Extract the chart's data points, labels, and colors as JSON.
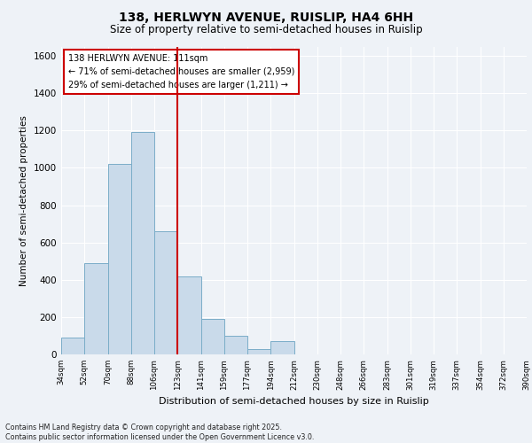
{
  "title1": "138, HERLWYN AVENUE, RUISLIP, HA4 6HH",
  "title2": "Size of property relative to semi-detached houses in Ruislip",
  "xlabel": "Distribution of semi-detached houses by size in Ruislip",
  "ylabel": "Number of semi-detached properties",
  "categories": [
    "34sqm",
    "52sqm",
    "70sqm",
    "88sqm",
    "106sqm",
    "123sqm",
    "141sqm",
    "159sqm",
    "177sqm",
    "194sqm",
    "212sqm",
    "230sqm",
    "248sqm",
    "266sqm",
    "283sqm",
    "301sqm",
    "319sqm",
    "337sqm",
    "354sqm",
    "372sqm",
    "390sqm"
  ],
  "bar_heights": [
    90,
    490,
    1020,
    1190,
    660,
    420,
    190,
    100,
    30,
    70,
    0,
    0,
    0,
    0,
    0,
    0,
    0,
    0,
    0,
    0
  ],
  "bar_color": "#c9daea",
  "bar_edge_color": "#7aadc8",
  "annotation_box_color": "#cc0000",
  "vline_color": "#cc0000",
  "annotation_text": "138 HERLWYN AVENUE: 111sqm\n← 71% of semi-detached houses are smaller (2,959)\n29% of semi-detached houses are larger (1,211) →",
  "ylim": [
    0,
    1650
  ],
  "yticks": [
    0,
    200,
    400,
    600,
    800,
    1000,
    1200,
    1400,
    1600
  ],
  "footer": "Contains HM Land Registry data © Crown copyright and database right 2025.\nContains public sector information licensed under the Open Government Licence v3.0.",
  "bg_color": "#eef2f7"
}
